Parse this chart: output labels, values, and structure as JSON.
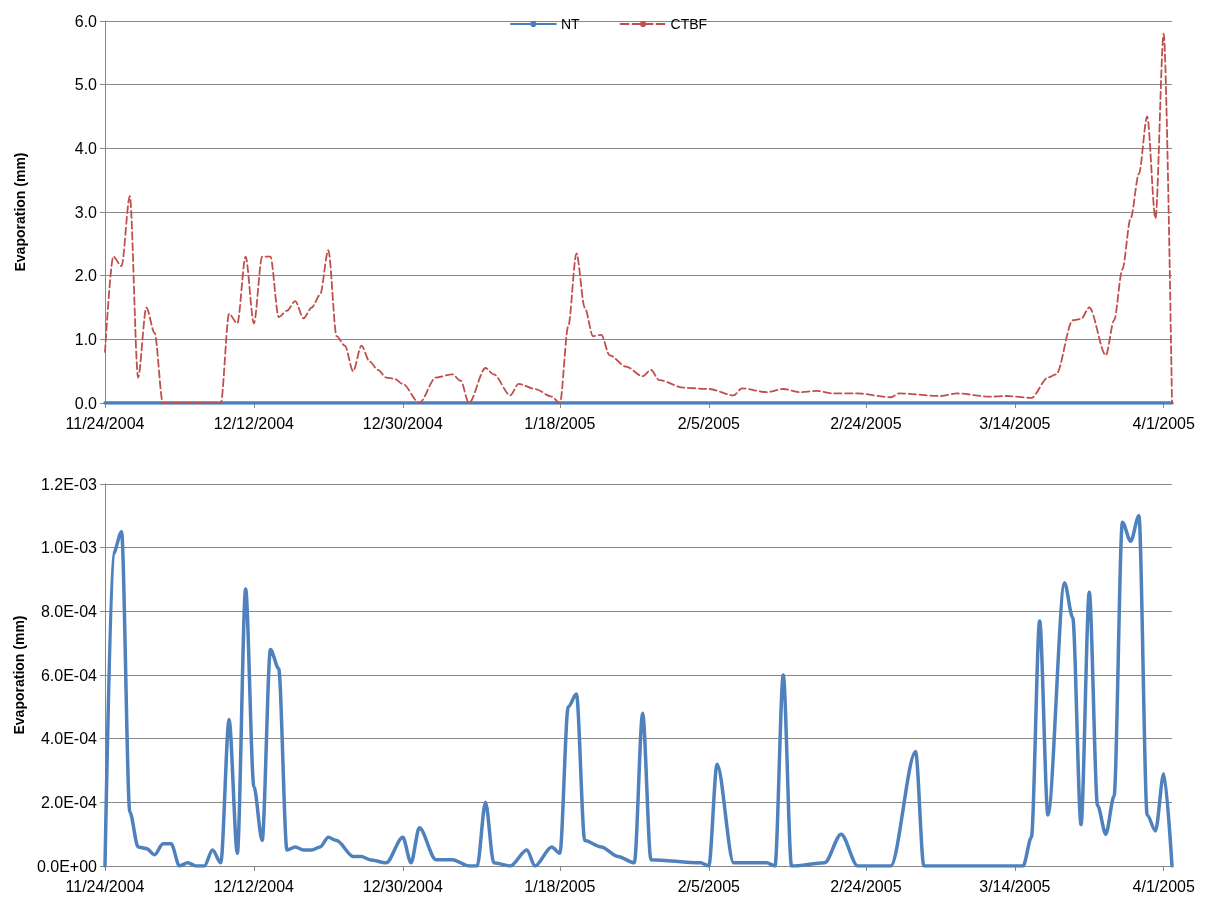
{
  "chart_data": [
    {
      "type": "line",
      "ylabel": "Evaporation (mm)",
      "xlim": [
        "2004-11-24",
        "2005-04-02"
      ],
      "xticks": [
        {
          "value": "2004-11-24",
          "label": "11/24/2004"
        },
        {
          "value": "2004-12-12",
          "label": "12/12/2004"
        },
        {
          "value": "2004-12-30",
          "label": "12/30/2004"
        },
        {
          "value": "2005-01-18",
          "label": "1/18/2005"
        },
        {
          "value": "2005-02-05",
          "label": "2/5/2005"
        },
        {
          "value": "2005-02-24",
          "label": "2/24/2005"
        },
        {
          "value": "2005-03-14",
          "label": "3/14/2005"
        },
        {
          "value": "2005-04-01",
          "label": "4/1/2005"
        }
      ],
      "ylim": [
        0,
        6
      ],
      "yticks": [
        {
          "value": 0,
          "label": "0.0"
        },
        {
          "value": 1,
          "label": "1.0"
        },
        {
          "value": 2,
          "label": "2.0"
        },
        {
          "value": 3,
          "label": "3.0"
        },
        {
          "value": 4,
          "label": "4.0"
        },
        {
          "value": 5,
          "label": "5.0"
        },
        {
          "value": 6,
          "label": "6.0"
        }
      ],
      "grid": "y",
      "legend": "top",
      "marker": "none",
      "series": [
        {
          "name": "NT",
          "color": "#4a7ebb",
          "line_style": "solid",
          "x": [
            "2004-11-24",
            "2005-04-02"
          ],
          "values": [
            0,
            0
          ]
        },
        {
          "name": "CTBF",
          "color": "#c0504d",
          "line_style": "dashed",
          "x": [
            "2004-11-24",
            "2004-11-25",
            "2004-11-26",
            "2004-11-27",
            "2004-11-28",
            "2004-11-29",
            "2004-11-30",
            "2004-12-01",
            "2004-12-08",
            "2004-12-09",
            "2004-12-10",
            "2004-12-11",
            "2004-12-12",
            "2004-12-13",
            "2004-12-14",
            "2004-12-15",
            "2004-12-16",
            "2004-12-17",
            "2004-12-18",
            "2004-12-19",
            "2004-12-20",
            "2004-12-21",
            "2004-12-22",
            "2004-12-23",
            "2004-12-24",
            "2004-12-25",
            "2004-12-26",
            "2004-12-27",
            "2004-12-28",
            "2004-12-29",
            "2004-12-30",
            "2005-01-01",
            "2005-01-03",
            "2005-01-05",
            "2005-01-06",
            "2005-01-07",
            "2005-01-09",
            "2005-01-10",
            "2005-01-12",
            "2005-01-13",
            "2005-01-15",
            "2005-01-17",
            "2005-01-18",
            "2005-01-19",
            "2005-01-20",
            "2005-01-21",
            "2005-01-22",
            "2005-01-23",
            "2005-01-24",
            "2005-01-26",
            "2005-01-28",
            "2005-01-29",
            "2005-01-30",
            "2005-02-02",
            "2005-02-05",
            "2005-02-08",
            "2005-02-09",
            "2005-02-12",
            "2005-02-14",
            "2005-02-16",
            "2005-02-18",
            "2005-02-20",
            "2005-02-23",
            "2005-02-27",
            "2005-02-28",
            "2005-03-05",
            "2005-03-07",
            "2005-03-11",
            "2005-03-13",
            "2005-03-16",
            "2005-03-18",
            "2005-03-19",
            "2005-03-21",
            "2005-03-22",
            "2005-03-23",
            "2005-03-25",
            "2005-03-26",
            "2005-03-27",
            "2005-03-28",
            "2005-03-29",
            "2005-03-30",
            "2005-03-31",
            "2005-04-01",
            "2005-04-02"
          ],
          "values": [
            0.8,
            2.3,
            2.15,
            3.25,
            0.4,
            1.5,
            1.1,
            0,
            0,
            1.4,
            1.25,
            2.3,
            1.25,
            2.3,
            2.3,
            1.35,
            1.45,
            1.6,
            1.33,
            1.5,
            1.7,
            2.4,
            1.05,
            0.9,
            0.5,
            0.9,
            0.65,
            0.52,
            0.4,
            0.38,
            0.3,
            0,
            0.4,
            0.45,
            0.35,
            0,
            0.55,
            0.45,
            0.12,
            0.3,
            0.22,
            0.1,
            0,
            1.2,
            2.35,
            1.5,
            1.05,
            1.07,
            0.75,
            0.57,
            0.42,
            0.52,
            0.36,
            0.24,
            0.22,
            0.12,
            0.23,
            0.17,
            0.22,
            0.17,
            0.19,
            0.15,
            0.15,
            0.09,
            0.15,
            0.11,
            0.15,
            0.1,
            0.11,
            0.08,
            0.4,
            0.45,
            1.3,
            1.32,
            1.5,
            0.75,
            1.3,
            2.1,
            2.9,
            3.6,
            4.5,
            2.9,
            5.8,
            0
          ]
        }
      ]
    },
    {
      "type": "line",
      "ylabel": "Evaporation (mm)",
      "xlim": [
        "2004-11-24",
        "2005-04-02"
      ],
      "xticks": [
        {
          "value": "2004-11-24",
          "label": "11/24/2004"
        },
        {
          "value": "2004-12-12",
          "label": "12/12/2004"
        },
        {
          "value": "2004-12-30",
          "label": "12/30/2004"
        },
        {
          "value": "2005-01-18",
          "label": "1/18/2005"
        },
        {
          "value": "2005-02-05",
          "label": "2/5/2005"
        },
        {
          "value": "2005-02-24",
          "label": "2/24/2005"
        },
        {
          "value": "2005-03-14",
          "label": "3/14/2005"
        },
        {
          "value": "2005-04-01",
          "label": "4/1/2005"
        }
      ],
      "ylim": [
        0,
        0.0012
      ],
      "yticks": [
        {
          "value": 0,
          "label": "0.0E+00"
        },
        {
          "value": 0.0002,
          "label": "2.0E-04"
        },
        {
          "value": 0.0004,
          "label": "4.0E-04"
        },
        {
          "value": 0.0006,
          "label": "6.0E-04"
        },
        {
          "value": 0.0008,
          "label": "8.0E-04"
        },
        {
          "value": 0.001,
          "label": "1.0E-03"
        },
        {
          "value": 0.0012,
          "label": "1.2E-03"
        }
      ],
      "grid": "y",
      "marker": "none",
      "series": [
        {
          "color": "#4f81bd",
          "line_style": "solid",
          "x": [
            "2004-11-24",
            "2004-11-25",
            "2004-11-26",
            "2004-11-27",
            "2004-11-28",
            "2004-11-29",
            "2004-11-30",
            "2004-12-01",
            "2004-12-02",
            "2004-12-03",
            "2004-12-04",
            "2004-12-05",
            "2004-12-06",
            "2004-12-07",
            "2004-12-08",
            "2004-12-09",
            "2004-12-10",
            "2004-12-11",
            "2004-12-12",
            "2004-12-13",
            "2004-12-14",
            "2004-12-15",
            "2004-12-16",
            "2004-12-17",
            "2004-12-18",
            "2004-12-19",
            "2004-12-20",
            "2004-12-21",
            "2004-12-22",
            "2004-12-24",
            "2004-12-25",
            "2004-12-26",
            "2004-12-28",
            "2004-12-30",
            "2004-12-31",
            "2005-01-01",
            "2005-01-03",
            "2005-01-05",
            "2005-01-07",
            "2005-01-08",
            "2005-01-09",
            "2005-01-10",
            "2005-01-12",
            "2005-01-14",
            "2005-01-15",
            "2005-01-17",
            "2005-01-18",
            "2005-01-19",
            "2005-01-20",
            "2005-01-21",
            "2005-01-23",
            "2005-01-25",
            "2005-01-27",
            "2005-01-28",
            "2005-01-29",
            "2005-02-04",
            "2005-02-05",
            "2005-02-06",
            "2005-02-08",
            "2005-02-12",
            "2005-02-13",
            "2005-02-14",
            "2005-02-15",
            "2005-02-19",
            "2005-02-21",
            "2005-02-23",
            "2005-02-27",
            "2005-03-02",
            "2005-03-03",
            "2005-03-15",
            "2005-03-16",
            "2005-03-17",
            "2005-03-18",
            "2005-03-20",
            "2005-03-21",
            "2005-03-22",
            "2005-03-23",
            "2005-03-24",
            "2005-03-25",
            "2005-03-26",
            "2005-03-27",
            "2005-03-28",
            "2005-03-29",
            "2005-03-30",
            "2005-03-31",
            "2005-04-01",
            "2005-04-02"
          ],
          "values": [
            0,
            0.00098,
            0.00105,
            0.00017,
            6e-05,
            5.5e-05,
            3.5e-05,
            7e-05,
            7e-05,
            0,
            1e-05,
            0,
            0,
            5e-05,
            1e-05,
            0.00046,
            4e-05,
            0.00087,
            0.00025,
            8e-05,
            0.00068,
            0.00062,
            5e-05,
            6e-05,
            5e-05,
            5e-05,
            6e-05,
            9e-05,
            8e-05,
            3e-05,
            3e-05,
            2e-05,
            1e-05,
            9e-05,
            1e-05,
            0.00012,
            2e-05,
            2e-05,
            0,
            0,
            0.0002,
            1e-05,
            0,
            5e-05,
            0,
            6e-05,
            4e-05,
            0.0005,
            0.00054,
            8e-05,
            6e-05,
            3e-05,
            1e-05,
            0.00048,
            2e-05,
            1e-05,
            0,
            0.00032,
            1e-05,
            1e-05,
            0,
            0.0006,
            0,
            1e-05,
            0.0001,
            0,
            0,
            0.00036,
            0,
            0,
            9e-05,
            0.00077,
            0.00016,
            0.00089,
            0.00078,
            0.00013,
            0.00086,
            0.00019,
            0.0001,
            0.00022,
            0.00108,
            0.00102,
            0.0011,
            0.00016,
            0.00011,
            0.00029,
            0
          ]
        }
      ]
    }
  ]
}
